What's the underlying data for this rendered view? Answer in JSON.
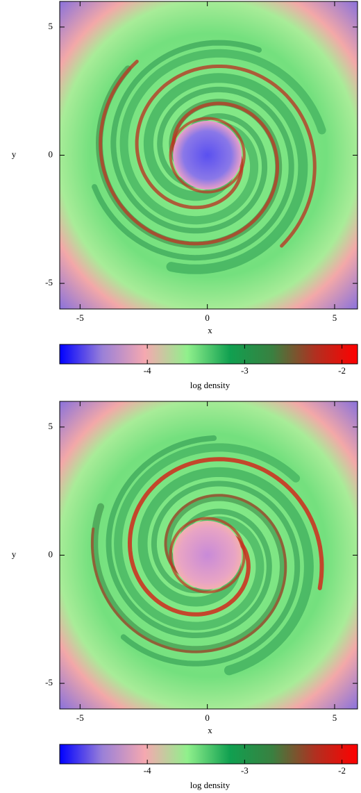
{
  "chart_data": [
    {
      "type": "heatmap",
      "xlabel": "x",
      "ylabel": "y",
      "xlim": [
        -5.8,
        5.9
      ],
      "ylim": [
        -6,
        6
      ],
      "xticks": [
        -5,
        0,
        5
      ],
      "yticks": [
        -5,
        0,
        5
      ],
      "colorbar": {
        "label": "log density",
        "lim": [
          -4.9,
          -1.84
        ],
        "ticks": [
          -4,
          -3,
          -2
        ],
        "colors": [
          "#0000ff",
          "#9a80d8",
          "#f5a8b0",
          "#90f08c",
          "#10a050",
          "#3a8040",
          "#b03020",
          "#ff0000"
        ]
      }
    },
    {
      "type": "heatmap",
      "xlabel": "x",
      "ylabel": "y",
      "xlim": [
        -5.8,
        5.9
      ],
      "ylim": [
        -6,
        6
      ],
      "xticks": [
        -5,
        0,
        5
      ],
      "yticks": [
        -5,
        0,
        5
      ],
      "colorbar": {
        "label": "log density",
        "lim": [
          -4.9,
          -1.84
        ],
        "ticks": [
          -4,
          -3,
          -2
        ],
        "colors": [
          "#0000ff",
          "#9a80d8",
          "#f5a8b0",
          "#90f08c",
          "#10a050",
          "#3a8040",
          "#b03020",
          "#ff0000"
        ]
      }
    }
  ]
}
